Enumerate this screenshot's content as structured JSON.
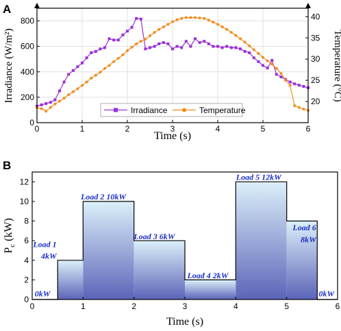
{
  "panels": {
    "a_label": "A",
    "b_label": "B"
  },
  "chart_data": [
    {
      "type": "line",
      "panel": "A",
      "xlabel": "Time (s)",
      "ylabel_left": "Irradiance (W/m²)",
      "ylabel_right": "Temperature (°C)",
      "xlim": [
        0,
        6
      ],
      "ylim_left": [
        0,
        900
      ],
      "ylim_right": [
        15,
        42
      ],
      "xticks": [
        "0",
        "1",
        "2",
        "3",
        "4",
        "5",
        "6"
      ],
      "yticks_left": [
        "0",
        "200",
        "400",
        "600",
        "800"
      ],
      "yticks_right": [
        "20",
        "25",
        "30",
        "35",
        "40"
      ],
      "grid": true,
      "legend": "bottom-center",
      "colors": {
        "irradiance": "#9b30d9",
        "temperature": "#f28c1e"
      },
      "series": [
        {
          "name": "Irradiance",
          "axis": "left",
          "x": [
            0,
            0.1,
            0.2,
            0.3,
            0.4,
            0.5,
            0.6,
            0.7,
            0.8,
            0.9,
            1.0,
            1.1,
            1.2,
            1.3,
            1.4,
            1.5,
            1.6,
            1.7,
            1.8,
            1.9,
            2.0,
            2.1,
            2.2,
            2.3,
            2.4,
            2.5,
            2.6,
            2.7,
            2.8,
            2.9,
            3.0,
            3.1,
            3.2,
            3.3,
            3.4,
            3.5,
            3.6,
            3.7,
            3.8,
            3.9,
            4.0,
            4.1,
            4.2,
            4.3,
            4.4,
            4.5,
            4.6,
            4.7,
            4.8,
            4.9,
            5.0,
            5.1,
            5.2,
            5.3,
            5.4,
            5.5,
            5.6,
            5.7,
            5.8,
            5.9,
            6.0
          ],
          "values": [
            130,
            140,
            150,
            160,
            180,
            250,
            320,
            380,
            410,
            440,
            470,
            510,
            550,
            560,
            580,
            590,
            660,
            650,
            650,
            690,
            720,
            750,
            820,
            815,
            580,
            590,
            600,
            620,
            630,
            620,
            580,
            600,
            590,
            640,
            600,
            660,
            630,
            640,
            620,
            600,
            600,
            590,
            600,
            590,
            590,
            580,
            560,
            550,
            510,
            480,
            450,
            430,
            490,
            380,
            360,
            340,
            320,
            305,
            295,
            285,
            275
          ]
        },
        {
          "name": "Temperature",
          "axis": "right",
          "x": [
            0,
            0.1,
            0.2,
            0.3,
            0.4,
            0.5,
            0.6,
            0.7,
            0.8,
            0.9,
            1.0,
            1.1,
            1.2,
            1.3,
            1.4,
            1.5,
            1.6,
            1.7,
            1.8,
            1.9,
            2.0,
            2.1,
            2.2,
            2.3,
            2.4,
            2.5,
            2.6,
            2.7,
            2.8,
            2.9,
            3.0,
            3.1,
            3.2,
            3.3,
            3.4,
            3.5,
            3.6,
            3.7,
            3.8,
            3.9,
            4.0,
            4.1,
            4.2,
            4.3,
            4.4,
            4.5,
            4.6,
            4.7,
            4.8,
            4.9,
            5.0,
            5.1,
            5.2,
            5.3,
            5.4,
            5.5,
            5.6,
            5.7,
            5.8,
            5.9,
            6.0
          ],
          "values": [
            18.5,
            18.3,
            17.7,
            18.6,
            19.4,
            20.1,
            20.8,
            21.6,
            22.3,
            23.0,
            23.8,
            24.6,
            25.5,
            26.2,
            26.9,
            27.8,
            28.5,
            29.4,
            30.2,
            31.0,
            32.0,
            32.8,
            33.6,
            34.2,
            34.7,
            35.5,
            36.3,
            37.0,
            37.6,
            38.2,
            38.8,
            39.3,
            39.6,
            39.8,
            39.8,
            39.8,
            39.7,
            39.6,
            39.2,
            38.7,
            38.2,
            37.6,
            37.0,
            36.3,
            35.6,
            34.8,
            34.0,
            33.1,
            32.2,
            31.3,
            30.4,
            29.6,
            28.8,
            27.8,
            26.6,
            25.0,
            23.8,
            19.0,
            18.6,
            18.2,
            17.9
          ]
        }
      ]
    },
    {
      "type": "area",
      "panel": "B",
      "xlabel": "Time (s)",
      "ylabel": "Pc (kW)",
      "ylabel_main": "P",
      "ylabel_sub": "c",
      "ylabel_unit": " (kW)",
      "xlim": [
        0,
        6
      ],
      "ylim": [
        0,
        13
      ],
      "xticks": [
        "0",
        "1",
        "2",
        "3",
        "4",
        "5",
        "6"
      ],
      "yticks": [
        "0",
        "2",
        "4",
        "6",
        "8",
        "10",
        "12"
      ],
      "grid": false,
      "step_x": [
        0,
        0.5,
        0.5,
        1.0,
        1.0,
        2.0,
        2.0,
        3.0,
        3.0,
        4.0,
        4.0,
        5.0,
        5.0,
        5.6,
        5.6,
        6.0
      ],
      "step_y": [
        0,
        0,
        4,
        4,
        10,
        10,
        6,
        6,
        2,
        2,
        12,
        12,
        8,
        8,
        0,
        0
      ],
      "annotations": [
        {
          "text": "0kW"
        },
        {
          "text": "Load 1"
        },
        {
          "text": "4kW"
        },
        {
          "text": "Load 2  10kW"
        },
        {
          "text": "Load 3  6kW"
        },
        {
          "text": "Load 4  2kW"
        },
        {
          "text": "Load 5  12kW"
        },
        {
          "text": "Load 6"
        },
        {
          "text": "8kW"
        },
        {
          "text": "0kW"
        }
      ],
      "colors": {
        "fill_top": "#dcf0fa",
        "fill_bottom": "#5b64b8",
        "label": "#1a2fc8"
      }
    }
  ]
}
